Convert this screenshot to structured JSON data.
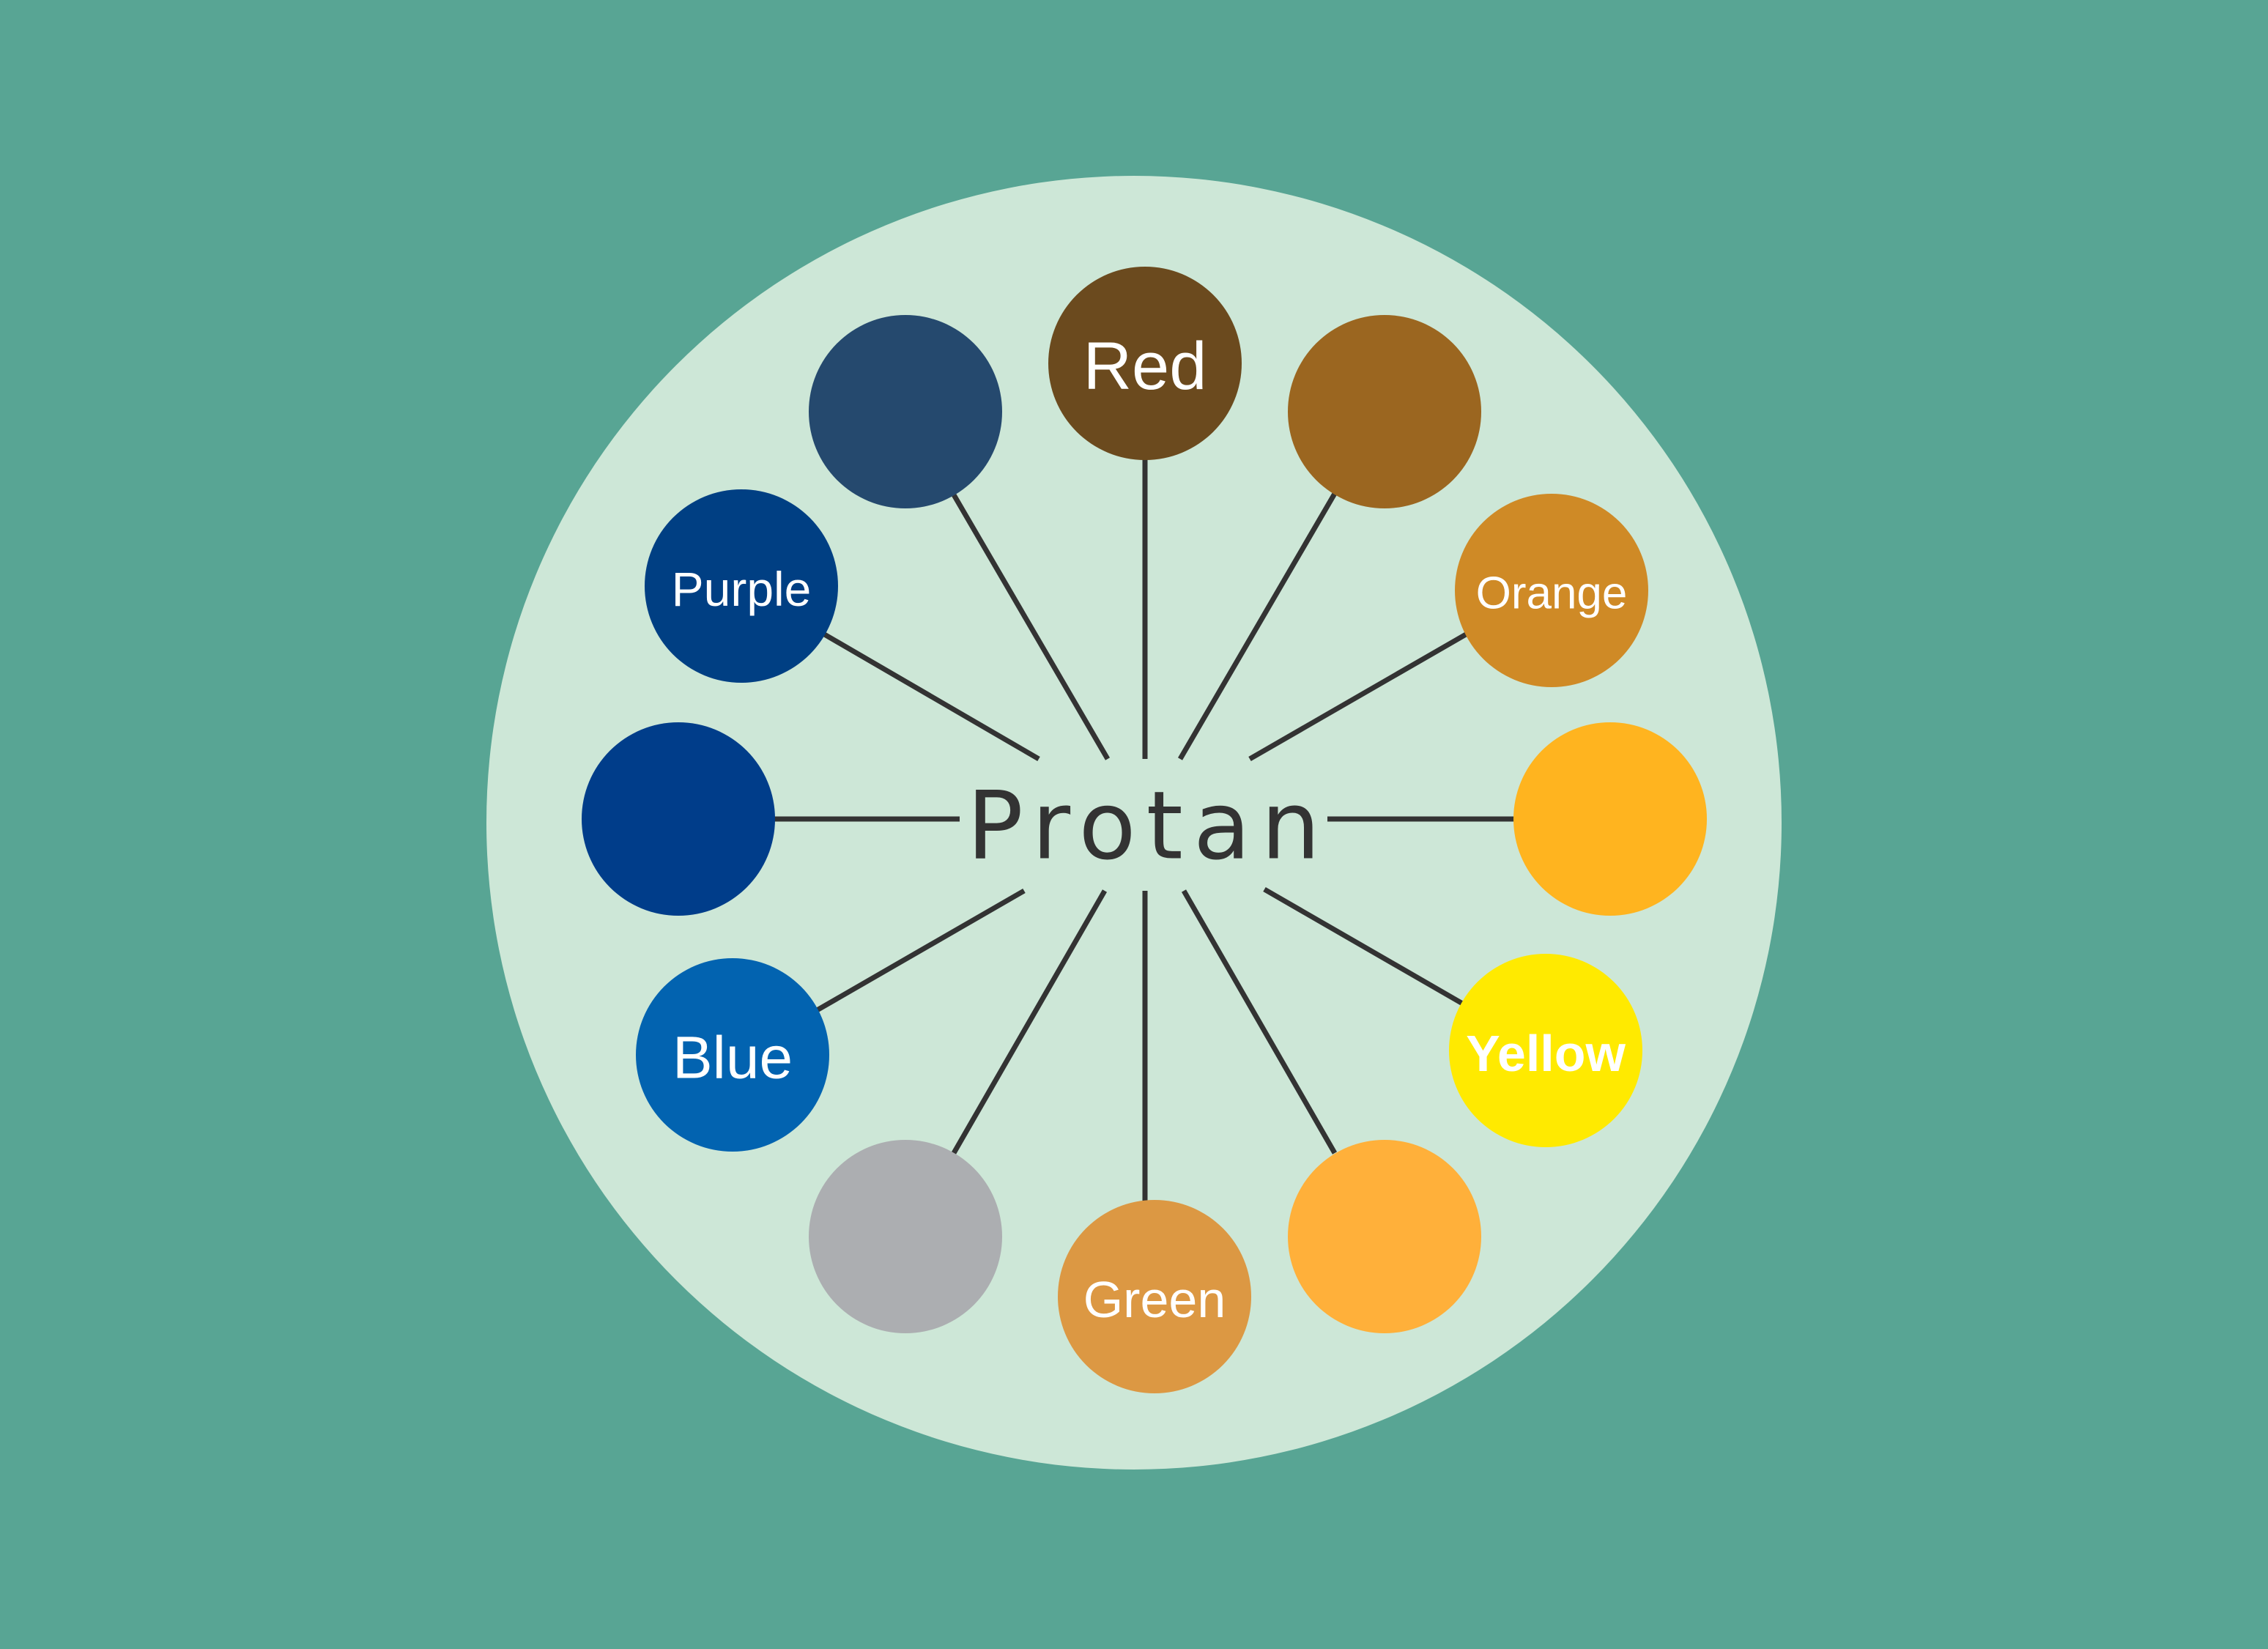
{
  "diagram": {
    "title": "Protan",
    "colors": {
      "page_background": "#58a594",
      "wheel_background": "#cde7d7",
      "spoke_color": "#333333",
      "label_color": "#ffffff",
      "title_color": "#333333"
    },
    "nodes": [
      {
        "id": "red",
        "label": "Red",
        "fill": "#6b4a1e"
      },
      {
        "id": "red-orange",
        "label": "",
        "fill": "#9b6620"
      },
      {
        "id": "orange",
        "label": "Orange",
        "fill": "#cf8a26"
      },
      {
        "id": "yellow-orange",
        "label": "",
        "fill": "#ffb41f"
      },
      {
        "id": "yellow",
        "label": "Yellow",
        "fill": "#ffea00"
      },
      {
        "id": "yellow-green",
        "label": "",
        "fill": "#ffb03a"
      },
      {
        "id": "green",
        "label": "Green",
        "fill": "#dc9843"
      },
      {
        "id": "blue-green",
        "label": "",
        "fill": "#acaeb1"
      },
      {
        "id": "blue",
        "label": "Blue",
        "fill": "#0263b0"
      },
      {
        "id": "blue-violet",
        "label": "",
        "fill": "#003d8a"
      },
      {
        "id": "purple",
        "label": "Purple",
        "fill": "#003f83"
      },
      {
        "id": "red-purple",
        "label": "",
        "fill": "#25496e"
      }
    ]
  }
}
